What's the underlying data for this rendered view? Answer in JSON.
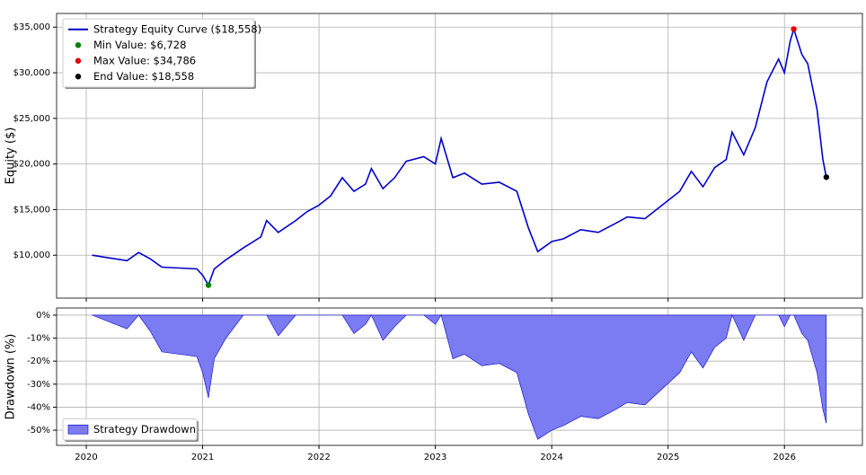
{
  "chart_data": [
    {
      "type": "line",
      "ylabel": "Equity ($)",
      "grid": true,
      "legend": "upper left",
      "xlim": [
        2019.745,
        2026.67
      ],
      "ylim": [
        5300,
        36500
      ],
      "yticks": [
        {
          "value": 10000,
          "label": "$10,000"
        },
        {
          "value": 15000,
          "label": "$15,000"
        },
        {
          "value": 20000,
          "label": "$20,000"
        },
        {
          "value": 25000,
          "label": "$25,000"
        },
        {
          "value": 30000,
          "label": "$30,000"
        },
        {
          "value": 35000,
          "label": "$35,000"
        }
      ],
      "x": [
        2020.05,
        2020.2,
        2020.35,
        2020.45,
        2020.55,
        2020.65,
        2020.8,
        2020.95,
        2021.0,
        2021.05,
        2021.1,
        2021.2,
        2021.35,
        2021.5,
        2021.55,
        2021.65,
        2021.8,
        2021.9,
        2022.0,
        2022.1,
        2022.2,
        2022.3,
        2022.4,
        2022.45,
        2022.55,
        2022.65,
        2022.75,
        2022.9,
        2023.0,
        2023.05,
        2023.15,
        2023.25,
        2023.4,
        2023.55,
        2023.7,
        2023.8,
        2023.88,
        2024.0,
        2024.1,
        2024.25,
        2024.4,
        2024.55,
        2024.65,
        2024.8,
        2024.95,
        2025.1,
        2025.2,
        2025.3,
        2025.4,
        2025.5,
        2025.55,
        2025.65,
        2025.75,
        2025.8,
        2025.85,
        2025.95,
        2026.0,
        2026.05,
        2026.08,
        2026.15,
        2026.2,
        2026.28,
        2026.33,
        2026.36
      ],
      "series": [
        {
          "name": "Strategy Equity Curve ($18,558)",
          "color": "#0000cc",
          "values": [
            10000,
            9700,
            9400,
            10300,
            9600,
            8700,
            8600,
            8500,
            7800,
            6728,
            8500,
            9500,
            10800,
            12000,
            13800,
            12500,
            13800,
            14800,
            15500,
            16500,
            18500,
            17000,
            17800,
            19500,
            17300,
            18500,
            20300,
            20800,
            20000,
            22800,
            18500,
            19000,
            17800,
            18000,
            17000,
            13000,
            10400,
            11500,
            11800,
            12800,
            12500,
            13500,
            14200,
            14000,
            15500,
            17000,
            19200,
            17500,
            19600,
            20500,
            23500,
            21000,
            24000,
            26500,
            29000,
            31500,
            30000,
            33500,
            34786,
            32000,
            31000,
            26000,
            20500,
            18558
          ]
        },
        {
          "name": "Min Value: $6,728",
          "color": "#008000",
          "x": [
            2021.05
          ],
          "values": [
            6728
          ]
        },
        {
          "name": "Max Value: $34,786",
          "color": "#e00000",
          "x": [
            2026.08
          ],
          "values": [
            34786
          ]
        },
        {
          "name": "End Value: $18,558",
          "color": "#000000",
          "x": [
            2026.36
          ],
          "values": [
            18558
          ]
        }
      ]
    },
    {
      "type": "area",
      "ylabel": "Drawdown (%)",
      "grid": true,
      "legend": "lower left",
      "xlim": [
        2019.745,
        2026.67
      ],
      "ylim": [
        -56.6,
        3.1
      ],
      "xticks": [
        2020,
        2021,
        2022,
        2023,
        2024,
        2025,
        2026
      ],
      "yticks": [
        {
          "value": -50,
          "label": "-50%"
        },
        {
          "value": -40,
          "label": "-40%"
        },
        {
          "value": -30,
          "label": "-30%"
        },
        {
          "value": -20,
          "label": "-20%"
        },
        {
          "value": -10,
          "label": "-10%"
        },
        {
          "value": 0,
          "label": "0%"
        }
      ],
      "x": [
        2020.05,
        2020.2,
        2020.35,
        2020.45,
        2020.55,
        2020.65,
        2020.8,
        2020.95,
        2021.0,
        2021.05,
        2021.1,
        2021.2,
        2021.35,
        2021.5,
        2021.55,
        2021.65,
        2021.8,
        2021.9,
        2022.0,
        2022.1,
        2022.2,
        2022.3,
        2022.4,
        2022.45,
        2022.55,
        2022.65,
        2022.75,
        2022.9,
        2023.0,
        2023.05,
        2023.15,
        2023.25,
        2023.4,
        2023.55,
        2023.7,
        2023.8,
        2023.88,
        2024.0,
        2024.1,
        2024.25,
        2024.4,
        2024.55,
        2024.65,
        2024.8,
        2024.95,
        2025.1,
        2025.2,
        2025.3,
        2025.4,
        2025.5,
        2025.55,
        2025.65,
        2025.75,
        2025.8,
        2025.85,
        2025.95,
        2026.0,
        2026.05,
        2026.08,
        2026.15,
        2026.2,
        2026.28,
        2026.33,
        2026.36
      ],
      "series": [
        {
          "name": "Strategy Drawdown",
          "color": "#7b7bf2",
          "edge_color": "#0000cc",
          "values": [
            0,
            -3,
            -6,
            0,
            -7,
            -16,
            -17,
            -18,
            -25,
            -36,
            -19,
            -10,
            0,
            0,
            0,
            -9,
            0,
            0,
            0,
            0,
            0,
            -8,
            -4,
            0,
            -11,
            -5,
            0,
            0,
            -4,
            0,
            -19,
            -17,
            -22,
            -21,
            -25,
            -43,
            -54,
            -50,
            -48,
            -44,
            -45,
            -41,
            -38,
            -39,
            -32,
            -25,
            -16,
            -23,
            -14,
            -10,
            0,
            -11,
            0,
            0,
            0,
            0,
            -5,
            0,
            0,
            -8,
            -11,
            -25,
            -41,
            -47
          ]
        }
      ]
    }
  ]
}
